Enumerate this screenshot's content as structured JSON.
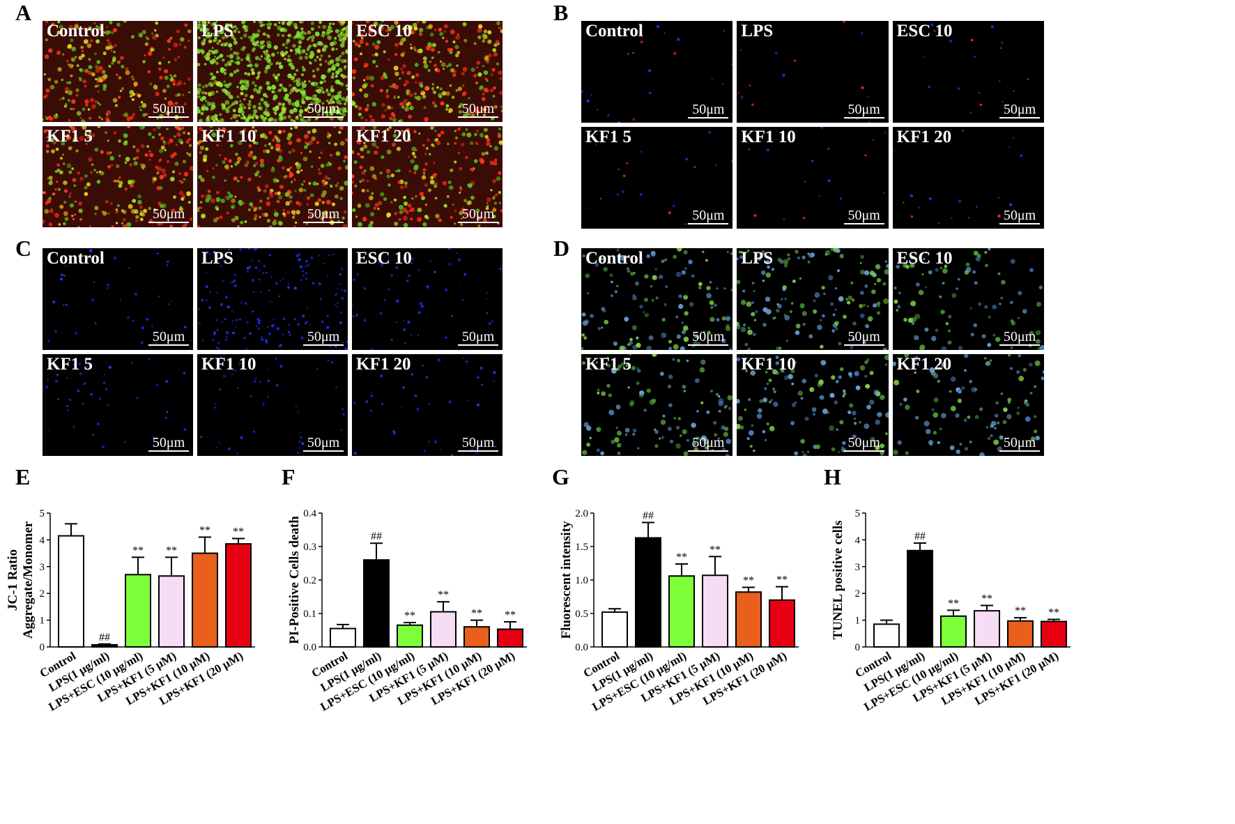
{
  "figure": {
    "panels_images": [
      {
        "letter": "A",
        "type": "jc1",
        "scalebar": "50μm",
        "tiles": [
          "Control",
          "LPS",
          "ESC 10",
          "KF1 5",
          "KF1 10",
          "KF1 20"
        ]
      },
      {
        "letter": "B",
        "type": "pi",
        "scalebar": "50μm",
        "tiles": [
          "Control",
          "LPS",
          "ESC 10",
          "KF1 5",
          "KF1 10",
          "KF1 20"
        ]
      },
      {
        "letter": "C",
        "type": "dapi",
        "scalebar": "50μm",
        "tiles": [
          "Control",
          "LPS",
          "ESC 10",
          "KF1 5",
          "KF1 10",
          "KF1 20"
        ]
      },
      {
        "letter": "D",
        "type": "tunel",
        "scalebar": "50μm",
        "tiles": [
          "Control",
          "LPS",
          "ESC 10",
          "KF1 5",
          "KF1 10",
          "KF1 20"
        ]
      }
    ],
    "colors": {
      "control": "#ffffff",
      "lps": "#000000",
      "esc": "#7dff3a",
      "kf1_5": "#f7dcf5",
      "kf1_10": "#e8601c",
      "kf1_20": "#e60012"
    }
  },
  "chart_data": [
    {
      "letter": "E",
      "type": "bar",
      "ylabel": [
        "JC-1 Ratio",
        "Aggregate/Monomer"
      ],
      "ylim": [
        0,
        5
      ],
      "yticks": [
        "0",
        "1",
        "2",
        "3",
        "4",
        "5"
      ],
      "ytick_values": [
        0,
        1,
        2,
        3,
        4,
        5
      ],
      "categories": [
        "Control",
        "LPS(1 μg/ml)",
        "LPS+ESC (10 μg/ml)",
        "LPS+KF1 (5 μM)",
        "LPS+KF1 (10 μM)",
        "LPS+KF1 (20 μM)"
      ],
      "values": [
        4.15,
        0.08,
        2.7,
        2.65,
        3.5,
        3.85
      ],
      "errors": [
        0.45,
        0.03,
        0.65,
        0.7,
        0.6,
        0.2
      ],
      "annotations": [
        "",
        "##",
        "**",
        "**",
        "**",
        "**"
      ]
    },
    {
      "letter": "F",
      "type": "bar",
      "ylabel": [
        "PI-Positive Cells death"
      ],
      "ylim": [
        0,
        0.4
      ],
      "yticks": [
        "0.0",
        "0.1",
        "0.2",
        "0.3",
        "0.4"
      ],
      "ytick_values": [
        0,
        0.1,
        0.2,
        0.3,
        0.4
      ],
      "categories": [
        "Control",
        "LPS(1 μg/ml)",
        "LPS+ESC (10 μg/ml)",
        "LPS+KF1 (5 μM)",
        "LPS+KF1 (10 μM)",
        "LPS+KF1 (20 μM)"
      ],
      "values": [
        0.055,
        0.26,
        0.065,
        0.105,
        0.06,
        0.053
      ],
      "errors": [
        0.012,
        0.05,
        0.008,
        0.03,
        0.02,
        0.022
      ],
      "annotations": [
        "",
        "##",
        "**",
        "**",
        "**",
        "**"
      ]
    },
    {
      "letter": "G",
      "type": "bar",
      "ylabel": [
        "Fluorescent intensity"
      ],
      "ylim": [
        0,
        2.0
      ],
      "yticks": [
        "0.0",
        "0.5",
        "1.0",
        "1.5",
        "2.0"
      ],
      "ytick_values": [
        0,
        0.5,
        1.0,
        1.5,
        2.0
      ],
      "categories": [
        "Control",
        "LPS(1 μg/ml)",
        "LPS+ESC (10 μg/ml)",
        "LPS+KF1 (5 μM)",
        "LPS+KF1 (10 μM)",
        "LPS+KF1 (20 μM)"
      ],
      "values": [
        0.52,
        1.63,
        1.06,
        1.07,
        0.82,
        0.7
      ],
      "errors": [
        0.05,
        0.23,
        0.18,
        0.28,
        0.07,
        0.2
      ],
      "annotations": [
        "",
        "##",
        "**",
        "**",
        "**",
        "**"
      ]
    },
    {
      "letter": "H",
      "type": "bar",
      "ylabel": [
        "TUNEL  positive cells"
      ],
      "ylim": [
        0,
        5
      ],
      "yticks": [
        "0",
        "1",
        "2",
        "3",
        "4",
        "5"
      ],
      "ytick_values": [
        0,
        1,
        2,
        3,
        4,
        5
      ],
      "categories": [
        "Control",
        "LPS(1 μg/ml)",
        "LPS+ESC (10 μg/ml)",
        "LPS+KF1 (5 μM)",
        "LPS+KF1 (10 μM)",
        "LPS+KF1 (20 μM)"
      ],
      "values": [
        0.85,
        3.6,
        1.15,
        1.35,
        0.97,
        0.95
      ],
      "errors": [
        0.15,
        0.28,
        0.22,
        0.2,
        0.12,
        0.08
      ],
      "annotations": [
        "",
        "##",
        "**",
        "**",
        "**",
        "**"
      ]
    }
  ]
}
